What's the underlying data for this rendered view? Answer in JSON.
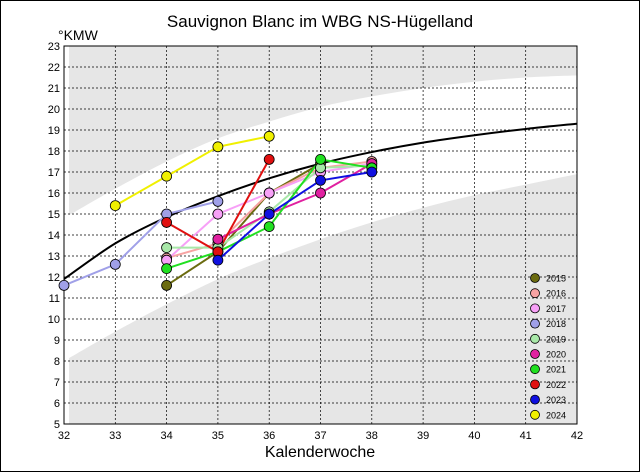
{
  "chart_data": {
    "type": "line",
    "title": "Sauvignon Blanc im WBG NS-Hügelland",
    "ylabel": "°KMW",
    "xlabel": "Kalenderwoche",
    "xlim": [
      32,
      42
    ],
    "ylim": [
      5,
      23
    ],
    "xticks": [
      32,
      33,
      34,
      35,
      36,
      37,
      38,
      39,
      40,
      41,
      42
    ],
    "yticks": [
      5,
      6,
      7,
      8,
      9,
      10,
      11,
      12,
      13,
      14,
      15,
      16,
      17,
      18,
      19,
      20,
      21,
      22,
      23
    ],
    "grid": true,
    "legend_position": "bottom-right",
    "reference_curve": [
      [
        32,
        11.9
      ],
      [
        33,
        13.6
      ],
      [
        34,
        14.85
      ],
      [
        35,
        15.85
      ],
      [
        36,
        16.7
      ],
      [
        37,
        17.4
      ],
      [
        38,
        17.95
      ],
      [
        39,
        18.4
      ],
      [
        40,
        18.75
      ],
      [
        41,
        19.05
      ],
      [
        42,
        19.3
      ]
    ],
    "band_upper_edge": [
      [
        32,
        14.8
      ],
      [
        33,
        16.2
      ],
      [
        34,
        17.5
      ],
      [
        35,
        18.6
      ],
      [
        36,
        19.4
      ],
      [
        37,
        20.1
      ],
      [
        38,
        20.6
      ],
      [
        39,
        21.0
      ],
      [
        40,
        21.3
      ],
      [
        41,
        21.5
      ],
      [
        42,
        21.6
      ]
    ],
    "band_lower_edge": [
      [
        32,
        8.0
      ],
      [
        33,
        9.4
      ],
      [
        34,
        10.7
      ],
      [
        35,
        11.9
      ],
      [
        36,
        12.9
      ],
      [
        37,
        13.8
      ],
      [
        38,
        14.6
      ],
      [
        39,
        15.3
      ],
      [
        40,
        15.9
      ],
      [
        41,
        16.4
      ],
      [
        42,
        16.9
      ]
    ],
    "series": [
      {
        "name": "2015",
        "color": "#6b6b10",
        "points": [
          [
            34,
            11.6
          ],
          [
            35,
            13.2
          ],
          [
            36,
            16.0
          ],
          [
            37,
            17.4
          ]
        ]
      },
      {
        "name": "2016",
        "color": "#f7a3a3",
        "points": [
          [
            34,
            12.9
          ],
          [
            35,
            13.6
          ],
          [
            36,
            16.0
          ],
          [
            37,
            17.2
          ],
          [
            38,
            17.5
          ]
        ]
      },
      {
        "name": "2017",
        "color": "#f7a0f7",
        "points": [
          [
            34,
            12.8
          ],
          [
            35,
            15.0
          ],
          [
            36,
            16.0
          ],
          [
            37,
            17.0
          ],
          [
            38,
            17.4
          ]
        ]
      },
      {
        "name": "2018",
        "color": "#a0a0e8",
        "points": [
          [
            32,
            11.6
          ],
          [
            33,
            12.6
          ],
          [
            34,
            15.0
          ],
          [
            35,
            15.6
          ]
        ]
      },
      {
        "name": "2019",
        "color": "#a8e8a8",
        "points": [
          [
            34,
            13.4
          ],
          [
            35,
            13.4
          ],
          [
            36,
            15.1
          ],
          [
            37,
            17.2
          ],
          [
            38,
            17.3
          ]
        ]
      },
      {
        "name": "2020",
        "color": "#e020a0",
        "points": [
          [
            35,
            13.8
          ],
          [
            36,
            15.0
          ],
          [
            37,
            16.0
          ],
          [
            38,
            17.4
          ]
        ]
      },
      {
        "name": "2021",
        "color": "#20e020",
        "points": [
          [
            34,
            12.4
          ],
          [
            35,
            13.2
          ],
          [
            36,
            14.4
          ],
          [
            37,
            17.6
          ],
          [
            38,
            17.2
          ]
        ]
      },
      {
        "name": "2022",
        "color": "#e01010",
        "points": [
          [
            34,
            14.6
          ],
          [
            35,
            13.2
          ],
          [
            36,
            17.6
          ]
        ]
      },
      {
        "name": "2023",
        "color": "#1010e0",
        "points": [
          [
            35,
            12.8
          ],
          [
            36,
            15.0
          ],
          [
            37,
            16.6
          ],
          [
            38,
            17.0
          ]
        ]
      },
      {
        "name": "2024",
        "color": "#f0f000",
        "points": [
          [
            33,
            15.4
          ],
          [
            34,
            16.8
          ],
          [
            35,
            18.2
          ],
          [
            36,
            18.7
          ]
        ]
      }
    ]
  }
}
